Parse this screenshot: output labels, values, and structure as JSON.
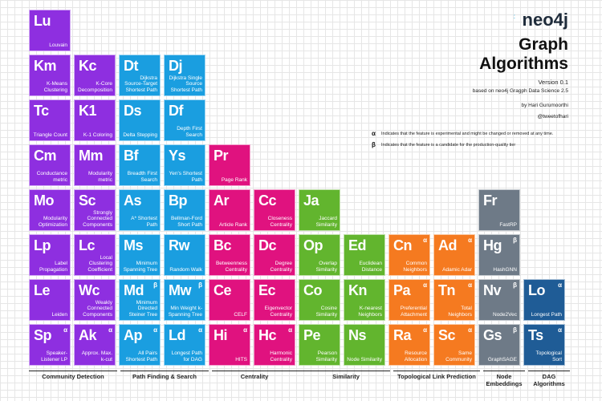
{
  "colors": {
    "community": "#8e2fe0",
    "path": "#1a9ee0",
    "centrality": "#e0127f",
    "similarity": "#62b52e",
    "link": "#f57a20",
    "embedding": "#6e7a87",
    "dag": "#1f5c96"
  },
  "header": {
    "logo": "neo4j",
    "title_line1": "Graph",
    "title_line2": "Algorithms",
    "version": "Version 0.1",
    "based_on": "based on neo4j Gragph Data Science 2.5",
    "author": "by Hari Gurumoorthi",
    "handle": "@tweetofhari",
    "legend": [
      {
        "symbol": "α",
        "text": "Indicates that the feature is experimental and might be changed or removed at any time."
      },
      {
        "symbol": "β",
        "text": "Indicates that the feature is a candidate for the production-quality tier"
      }
    ]
  },
  "tiles": [
    {
      "sym": "Lu",
      "label": "Louvain",
      "group": "community",
      "tag": ""
    },
    {
      "sym": "Km",
      "label": "K-Means Clustering",
      "group": "community",
      "tag": ""
    },
    {
      "sym": "Tc",
      "label": "Triangle Count",
      "group": "community",
      "tag": ""
    },
    {
      "sym": "Cm",
      "label": "Conductance metric",
      "group": "community",
      "tag": ""
    },
    {
      "sym": "Mo",
      "label": "Modularity Optimization",
      "group": "community",
      "tag": ""
    },
    {
      "sym": "Lp",
      "label": "Label Propagation",
      "group": "community",
      "tag": ""
    },
    {
      "sym": "Le",
      "label": "Leiden",
      "group": "community",
      "tag": ""
    },
    {
      "sym": "Sp",
      "label": "Speaker-Listener LP",
      "group": "community",
      "tag": "α"
    },
    {
      "sym": "Kc",
      "label": "K-Core Decomposition",
      "group": "community",
      "tag": ""
    },
    {
      "sym": "K1",
      "label": "K-1 Coloring",
      "group": "community",
      "tag": ""
    },
    {
      "sym": "Mm",
      "label": "Modularity metric",
      "group": "community",
      "tag": ""
    },
    {
      "sym": "Sc",
      "label": "Strongly Connected Components",
      "group": "community",
      "tag": ""
    },
    {
      "sym": "Lc",
      "label": "Local Clustering Coefficient",
      "group": "community",
      "tag": ""
    },
    {
      "sym": "Wc",
      "label": "Weakly Connected Components",
      "group": "community",
      "tag": ""
    },
    {
      "sym": "Ak",
      "label": "Approx. Max. k-cut",
      "group": "community",
      "tag": "α"
    },
    {
      "sym": "Dt",
      "label": "Dijkstra Source-Target Shortest Path",
      "group": "path",
      "tag": ""
    },
    {
      "sym": "Ds",
      "label": "Delta Stepping",
      "group": "path",
      "tag": ""
    },
    {
      "sym": "Bf",
      "label": "Breadth First Search",
      "group": "path",
      "tag": ""
    },
    {
      "sym": "As",
      "label": "A* Shortest Path",
      "group": "path",
      "tag": ""
    },
    {
      "sym": "Ms",
      "label": "Minimum Spanning Tree",
      "group": "path",
      "tag": ""
    },
    {
      "sym": "Md",
      "label": "Minimum Directed Steiner Tree",
      "group": "path",
      "tag": "β"
    },
    {
      "sym": "Ap",
      "label": "All Pairs Shortest Path",
      "group": "path",
      "tag": "α"
    },
    {
      "sym": "Dj",
      "label": "Dijkstra Single Source Shortest Path",
      "group": "path",
      "tag": ""
    },
    {
      "sym": "Df",
      "label": "Depth First Search",
      "group": "path",
      "tag": ""
    },
    {
      "sym": "Ys",
      "label": "Yen's Shortest Path",
      "group": "path",
      "tag": ""
    },
    {
      "sym": "Bp",
      "label": "Bellman-Ford Short Path",
      "group": "path",
      "tag": ""
    },
    {
      "sym": "Rw",
      "label": "Random Walk",
      "group": "path",
      "tag": ""
    },
    {
      "sym": "Mw",
      "label": "Min Weight k-Spanning Tree",
      "group": "path",
      "tag": "β"
    },
    {
      "sym": "Ld",
      "label": "Longest Path for DAG",
      "group": "path",
      "tag": "α"
    },
    {
      "sym": "Pr",
      "label": "Page Rank",
      "group": "centrality",
      "tag": ""
    },
    {
      "sym": "Ar",
      "label": "Article Rank",
      "group": "centrality",
      "tag": ""
    },
    {
      "sym": "Bc",
      "label": "Betweenness Centrality",
      "group": "centrality",
      "tag": ""
    },
    {
      "sym": "Ce",
      "label": "CELF",
      "group": "centrality",
      "tag": ""
    },
    {
      "sym": "Hi",
      "label": "HITS",
      "group": "centrality",
      "tag": "α"
    },
    {
      "sym": "Cc",
      "label": "Closeness Centrality",
      "group": "centrality",
      "tag": ""
    },
    {
      "sym": "Dc",
      "label": "Degree Centrality",
      "group": "centrality",
      "tag": ""
    },
    {
      "sym": "Ec",
      "label": "Eigenvector Centrality",
      "group": "centrality",
      "tag": ""
    },
    {
      "sym": "Hc",
      "label": "Harmonic Centrality",
      "group": "centrality",
      "tag": "α"
    },
    {
      "sym": "Ja",
      "label": "Jaccard Similarity",
      "group": "similarity",
      "tag": ""
    },
    {
      "sym": "Op",
      "label": "Overlap Similarity",
      "group": "similarity",
      "tag": ""
    },
    {
      "sym": "Co",
      "label": "Cosine Similarity",
      "group": "similarity",
      "tag": ""
    },
    {
      "sym": "Pe",
      "label": "Pearson Similarity",
      "group": "similarity",
      "tag": ""
    },
    {
      "sym": "Ed",
      "label": "Euclidean Distance",
      "group": "similarity",
      "tag": ""
    },
    {
      "sym": "Kn",
      "label": "K-nearest Neighbors",
      "group": "similarity",
      "tag": ""
    },
    {
      "sym": "Ns",
      "label": "Node Similarity",
      "group": "similarity",
      "tag": ""
    },
    {
      "sym": "Cn",
      "label": "Common Neighbors",
      "group": "link",
      "tag": "α"
    },
    {
      "sym": "Pa",
      "label": "Preferential Attachment",
      "group": "link",
      "tag": "α"
    },
    {
      "sym": "Ra",
      "label": "Resource Allocation",
      "group": "link",
      "tag": "α"
    },
    {
      "sym": "Ad",
      "label": "Adamic Adar",
      "group": "link",
      "tag": "α"
    },
    {
      "sym": "Tn",
      "label": "Total Neighbors",
      "group": "link",
      "tag": "α"
    },
    {
      "sym": "Sc",
      "label": "Same Community",
      "group": "link",
      "tag": "α"
    },
    {
      "sym": "Fr",
      "label": "FastRP",
      "group": "embedding",
      "tag": ""
    },
    {
      "sym": "Hg",
      "label": "HashGNN",
      "group": "embedding",
      "tag": "β"
    },
    {
      "sym": "Nv",
      "label": "Node2Vec",
      "group": "embedding",
      "tag": "β"
    },
    {
      "sym": "Gs",
      "label": "GraphSAGE",
      "group": "embedding",
      "tag": "β"
    },
    {
      "sym": "Lo",
      "label": "Longest Path",
      "group": "dag",
      "tag": "α"
    },
    {
      "sym": "Ts",
      "label": "Topological Sort",
      "group": "dag",
      "tag": "α"
    }
  ],
  "categories": [
    {
      "label": "Community Detection"
    },
    {
      "label": "Path Finding & Search"
    },
    {
      "label": "Centrality"
    },
    {
      "label": "Similarity"
    },
    {
      "label": "Topological Link Prediction"
    },
    {
      "label": "Node Embeddings"
    },
    {
      "label": "DAG Algorithms"
    }
  ]
}
